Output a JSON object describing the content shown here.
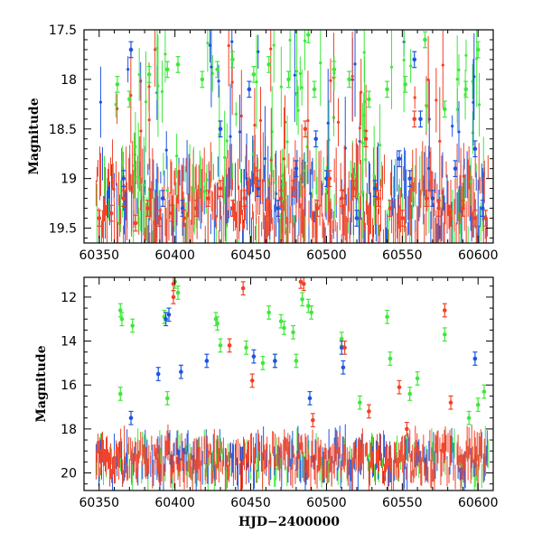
{
  "chart_data": [
    {
      "type": "scatter",
      "panel": "top",
      "title": "",
      "xlabel": "",
      "ylabel": "Magnitude",
      "xlim": [
        60340,
        60610
      ],
      "ylim": [
        19.65,
        17.5
      ],
      "y_inverted": true,
      "grid": false,
      "x_tick_values": [
        60350,
        60400,
        60450,
        60500,
        60550,
        60600
      ],
      "x_tick_labels": [
        "60350",
        "60400",
        "60450",
        "60500",
        "60550",
        "60600"
      ],
      "y_tick_values": [
        17.5,
        18,
        18.5,
        19,
        19.5
      ],
      "y_tick_labels": [
        "17.5",
        "18",
        "18.5",
        "19",
        "19.5"
      ],
      "series": [
        {
          "name": "green",
          "color": "#3ee83a",
          "x": [
            60362,
            60370,
            60383,
            60395,
            60402,
            60418,
            60428,
            60438,
            60452,
            60462,
            60475,
            60488,
            60492,
            60505,
            60515,
            60528,
            60540,
            60552,
            60565,
            60578,
            60592,
            60600
          ],
          "y": [
            18.05,
            18.2,
            17.95,
            17.9,
            17.85,
            18.0,
            17.9,
            17.8,
            17.95,
            17.85,
            18.0,
            17.55,
            18.1,
            17.9,
            18.0,
            18.2,
            18.1,
            18.05,
            17.6,
            18.3,
            18.1,
            17.7
          ]
        },
        {
          "name": "blue",
          "color": "#1c55e0",
          "x": [
            60366,
            60371,
            60392,
            60405,
            60430,
            60449,
            60455,
            60468,
            60480,
            60493,
            60500,
            60520,
            60532,
            60548,
            60555,
            60558,
            60562,
            60570,
            60585,
            60598,
            60603
          ],
          "y": [
            19.0,
            17.7,
            19.2,
            19.3,
            18.5,
            18.1,
            19.1,
            19.3,
            18.9,
            18.6,
            19.0,
            19.4,
            19.1,
            18.8,
            19.0,
            17.8,
            18.4,
            19.2,
            18.9,
            18.7,
            19.3
          ]
        },
        {
          "name": "red",
          "color": "#f04228",
          "x": [
            60350,
            60358,
            60366,
            60374,
            60382,
            60390,
            60398,
            60406,
            60414,
            60422,
            60430,
            60438,
            60446,
            60454,
            60462,
            60470,
            60478,
            60486,
            60494,
            60502,
            60510,
            60518,
            60526,
            60534,
            60542,
            60550,
            60558,
            60566,
            60574,
            60582,
            60590,
            60598,
            60605
          ],
          "y": [
            19.4,
            19.35,
            19.2,
            19.45,
            19.3,
            19.4,
            19.35,
            19.4,
            19.3,
            19.2,
            19.1,
            19.3,
            19.2,
            19.0,
            19.3,
            19.2,
            19.1,
            18.5,
            19.3,
            19.0,
            19.2,
            19.1,
            18.6,
            19.2,
            19.3,
            19.4,
            18.4,
            19.2,
            19.3,
            19.4,
            19.3,
            19.4,
            19.4
          ]
        }
      ]
    },
    {
      "type": "scatter",
      "panel": "bottom",
      "title": "",
      "xlabel": "HJD−2400000",
      "ylabel": "Magnitude",
      "xlim": [
        60340,
        60610
      ],
      "ylim": [
        20.8,
        11.1
      ],
      "y_inverted": true,
      "grid": false,
      "x_tick_values": [
        60350,
        60400,
        60450,
        60500,
        60550,
        60600
      ],
      "x_tick_labels": [
        "60350",
        "60400",
        "60450",
        "60500",
        "60550",
        "60600"
      ],
      "y_tick_values": [
        12,
        14,
        16,
        18,
        20
      ],
      "y_tick_labels": [
        "12",
        "14",
        "16",
        "18",
        "20"
      ],
      "series": [
        {
          "name": "green",
          "color": "#3ee83a",
          "x": [
            60364,
            60365,
            60364,
            60372,
            60393,
            60395,
            60400,
            60402,
            60427,
            60428,
            60430,
            60447,
            60458,
            60462,
            60466,
            60470,
            60472,
            60478,
            60480,
            60484,
            60488,
            60490,
            60510,
            60522,
            60540,
            60542,
            60555,
            60560,
            60578,
            60594,
            60600,
            60604
          ],
          "y": [
            12.6,
            13.0,
            16.4,
            13.3,
            12.9,
            16.6,
            11.3,
            11.8,
            13.0,
            13.2,
            14.2,
            14.3,
            15.0,
            12.7,
            14.9,
            13.1,
            13.4,
            13.6,
            14.9,
            12.1,
            12.4,
            12.7,
            13.9,
            16.8,
            12.9,
            14.8,
            16.4,
            15.7,
            13.7,
            17.5,
            16.9,
            16.3
          ]
        },
        {
          "name": "blue",
          "color": "#1c55e0",
          "x": [
            60371,
            60389,
            60394,
            60396,
            60404,
            60421,
            60452,
            60466,
            60489,
            60510,
            60511,
            60598
          ],
          "y": [
            17.5,
            15.5,
            13.0,
            12.8,
            15.4,
            14.9,
            14.7,
            14.9,
            16.6,
            14.3,
            15.2,
            14.8
          ]
        },
        {
          "name": "red",
          "color": "#f04228",
          "x": [
            60399,
            60399,
            60436,
            60445,
            60451,
            60483,
            60485,
            60491,
            60512,
            60528,
            60548,
            60553,
            60578,
            60582
          ],
          "y": [
            11.4,
            12.0,
            14.2,
            11.6,
            15.8,
            11.3,
            11.4,
            17.6,
            14.3,
            17.2,
            16.1,
            18.0,
            12.6,
            16.8
          ]
        }
      ]
    }
  ]
}
